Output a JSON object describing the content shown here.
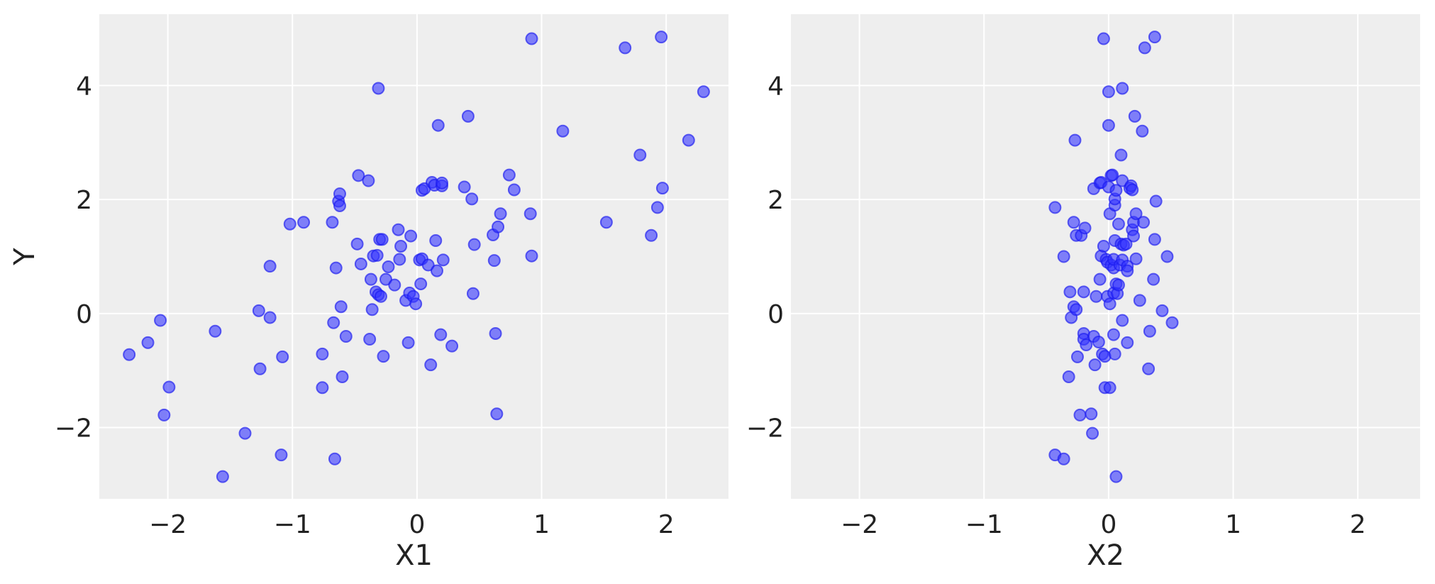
{
  "chart_data": [
    {
      "type": "scatter",
      "xlabel": "X1",
      "ylabel": "Y",
      "xlim": [
        -2.55,
        2.5
      ],
      "ylim": [
        -3.25,
        5.25
      ],
      "xticks": [
        -2,
        -1,
        0,
        1,
        2
      ],
      "xtick_labels": [
        "−2",
        "−1",
        "0",
        "1",
        "2"
      ],
      "yticks": [
        -2,
        0,
        2,
        4
      ],
      "ytick_labels": [
        "−2",
        "0",
        "2",
        "4"
      ],
      "grid": true,
      "color": "#3333ff",
      "points": [
        [
          -2.31,
          -0.72
        ],
        [
          -2.16,
          -0.51
        ],
        [
          -2.06,
          -0.12
        ],
        [
          -2.03,
          -1.78
        ],
        [
          -1.99,
          -1.29
        ],
        [
          -1.62,
          -0.31
        ],
        [
          -1.56,
          -2.86
        ],
        [
          -1.38,
          -2.1
        ],
        [
          -1.27,
          0.05
        ],
        [
          -1.26,
          -0.97
        ],
        [
          -1.18,
          0.83
        ],
        [
          -1.18,
          -0.07
        ],
        [
          -1.09,
          -2.48
        ],
        [
          -1.08,
          -0.76
        ],
        [
          -1.02,
          1.57
        ],
        [
          -0.91,
          1.6
        ],
        [
          -0.76,
          -0.71
        ],
        [
          -0.76,
          -1.3
        ],
        [
          -0.68,
          1.6
        ],
        [
          -0.67,
          -0.16
        ],
        [
          -0.66,
          -2.55
        ],
        [
          -0.65,
          0.8
        ],
        [
          -0.63,
          1.97
        ],
        [
          -0.62,
          1.89
        ],
        [
          -0.62,
          2.1
        ],
        [
          -0.61,
          0.12
        ],
        [
          -0.6,
          -1.11
        ],
        [
          -0.57,
          -0.4
        ],
        [
          -0.48,
          1.22
        ],
        [
          -0.47,
          2.42
        ],
        [
          -0.45,
          0.87
        ],
        [
          -0.39,
          2.33
        ],
        [
          -0.38,
          -0.45
        ],
        [
          -0.37,
          0.6
        ],
        [
          -0.36,
          0.07
        ],
        [
          -0.35,
          1.01
        ],
        [
          -0.33,
          0.38
        ],
        [
          -0.32,
          1.02
        ],
        [
          -0.31,
          3.95
        ],
        [
          -0.31,
          0.33
        ],
        [
          -0.3,
          1.3
        ],
        [
          -0.29,
          0.3
        ],
        [
          -0.28,
          1.3
        ],
        [
          -0.27,
          -0.75
        ],
        [
          -0.25,
          0.6
        ],
        [
          -0.23,
          0.82
        ],
        [
          -0.18,
          0.5
        ],
        [
          -0.15,
          1.47
        ],
        [
          -0.14,
          0.95
        ],
        [
          -0.13,
          1.18
        ],
        [
          -0.09,
          0.23
        ],
        [
          -0.07,
          -0.51
        ],
        [
          -0.06,
          0.36
        ],
        [
          -0.05,
          1.36
        ],
        [
          -0.03,
          0.3
        ],
        [
          -0.01,
          0.17
        ],
        [
          0.02,
          0.94
        ],
        [
          0.03,
          0.52
        ],
        [
          0.04,
          2.16
        ],
        [
          0.04,
          0.96
        ],
        [
          0.06,
          2.19
        ],
        [
          0.09,
          0.85
        ],
        [
          0.11,
          -0.9
        ],
        [
          0.12,
          2.3
        ],
        [
          0.14,
          2.25
        ],
        [
          0.15,
          1.28
        ],
        [
          0.16,
          0.75
        ],
        [
          0.17,
          3.3
        ],
        [
          0.19,
          -0.37
        ],
        [
          0.2,
          2.24
        ],
        [
          0.2,
          2.29
        ],
        [
          0.21,
          0.94
        ],
        [
          0.28,
          -0.57
        ],
        [
          0.38,
          2.22
        ],
        [
          0.41,
          3.46
        ],
        [
          0.44,
          2.01
        ],
        [
          0.45,
          0.35
        ],
        [
          0.46,
          1.21
        ],
        [
          0.61,
          1.38
        ],
        [
          0.62,
          0.93
        ],
        [
          0.63,
          -0.35
        ],
        [
          0.64,
          -1.76
        ],
        [
          0.65,
          1.52
        ],
        [
          0.67,
          1.75
        ],
        [
          0.74,
          2.43
        ],
        [
          0.78,
          2.17
        ],
        [
          0.91,
          1.75
        ],
        [
          0.92,
          1.01
        ],
        [
          0.92,
          4.82
        ],
        [
          1.17,
          3.2
        ],
        [
          1.52,
          1.6
        ],
        [
          1.67,
          4.66
        ],
        [
          1.79,
          2.78
        ],
        [
          1.88,
          1.37
        ],
        [
          1.93,
          1.86
        ],
        [
          1.96,
          4.85
        ],
        [
          1.97,
          2.2
        ],
        [
          2.18,
          3.04
        ],
        [
          2.3,
          3.89
        ]
      ]
    },
    {
      "type": "scatter",
      "xlabel": "X2",
      "ylabel": "",
      "xlim": [
        -2.55,
        2.5
      ],
      "ylim": [
        -3.25,
        5.25
      ],
      "xticks": [
        -2,
        -1,
        0,
        1,
        2
      ],
      "xtick_labels": [
        "−2",
        "−1",
        "0",
        "1",
        "2"
      ],
      "yticks": [
        -2,
        0,
        2,
        4
      ],
      "ytick_labels": [
        "−2",
        "0",
        "2",
        "4"
      ],
      "grid": true,
      "color": "#3333ff",
      "points": [
        [
          -0.43,
          1.86
        ],
        [
          -0.43,
          -2.48
        ],
        [
          -0.36,
          -2.55
        ],
        [
          -0.36,
          1.0
        ],
        [
          -0.32,
          -1.11
        ],
        [
          -0.31,
          0.38
        ],
        [
          -0.3,
          -0.07
        ],
        [
          -0.28,
          1.6
        ],
        [
          -0.28,
          0.12
        ],
        [
          -0.27,
          3.04
        ],
        [
          -0.26,
          0.07
        ],
        [
          -0.26,
          1.37
        ],
        [
          -0.25,
          -0.76
        ],
        [
          -0.23,
          -1.78
        ],
        [
          -0.22,
          1.37
        ],
        [
          -0.2,
          -0.35
        ],
        [
          -0.2,
          0.38
        ],
        [
          -0.2,
          -0.45
        ],
        [
          -0.19,
          1.5
        ],
        [
          -0.18,
          -0.55
        ],
        [
          -0.14,
          -1.76
        ],
        [
          -0.13,
          -2.1
        ],
        [
          -0.12,
          2.19
        ],
        [
          -0.12,
          -0.4
        ],
        [
          -0.11,
          -0.9
        ],
        [
          -0.1,
          0.3
        ],
        [
          -0.08,
          -0.5
        ],
        [
          -0.07,
          0.6
        ],
        [
          -0.07,
          2.29
        ],
        [
          -0.06,
          2.3
        ],
        [
          -0.06,
          1.01
        ],
        [
          -0.05,
          -0.71
        ],
        [
          -0.04,
          4.82
        ],
        [
          -0.04,
          1.18
        ],
        [
          -0.03,
          -1.3
        ],
        [
          -0.03,
          -0.75
        ],
        [
          -0.02,
          0.95
        ],
        [
          -0.01,
          0.9
        ],
        [
          -0.01,
          0.3
        ],
        [
          0.0,
          2.22
        ],
        [
          0.0,
          3.89
        ],
        [
          0.0,
          3.3
        ],
        [
          0.01,
          -1.3
        ],
        [
          0.01,
          0.17
        ],
        [
          0.01,
          1.75
        ],
        [
          0.02,
          0.85
        ],
        [
          0.02,
          2.42
        ],
        [
          0.03,
          2.43
        ],
        [
          0.04,
          0.8
        ],
        [
          0.04,
          -0.37
        ],
        [
          0.04,
          0.36
        ],
        [
          0.04,
          0.95
        ],
        [
          0.05,
          1.28
        ],
        [
          0.05,
          1.9
        ],
        [
          0.05,
          2.01
        ],
        [
          0.05,
          -0.71
        ],
        [
          0.06,
          0.52
        ],
        [
          0.06,
          2.16
        ],
        [
          0.06,
          -2.86
        ],
        [
          0.07,
          0.35
        ],
        [
          0.08,
          0.5
        ],
        [
          0.08,
          1.57
        ],
        [
          0.09,
          0.85
        ],
        [
          0.1,
          1.22
        ],
        [
          0.1,
          2.78
        ],
        [
          0.11,
          3.95
        ],
        [
          0.11,
          2.33
        ],
        [
          0.11,
          0.94
        ],
        [
          0.11,
          -0.12
        ],
        [
          0.12,
          1.2
        ],
        [
          0.14,
          1.22
        ],
        [
          0.15,
          0.83
        ],
        [
          0.15,
          0.75
        ],
        [
          0.15,
          -0.51
        ],
        [
          0.17,
          2.2
        ],
        [
          0.18,
          2.24
        ],
        [
          0.19,
          1.47
        ],
        [
          0.19,
          2.17
        ],
        [
          0.2,
          1.36
        ],
        [
          0.2,
          1.6
        ],
        [
          0.21,
          3.46
        ],
        [
          0.22,
          1.75
        ],
        [
          0.22,
          0.96
        ],
        [
          0.25,
          0.23
        ],
        [
          0.27,
          3.2
        ],
        [
          0.28,
          1.6
        ],
        [
          0.29,
          4.66
        ],
        [
          0.32,
          -0.97
        ],
        [
          0.33,
          -0.31
        ],
        [
          0.36,
          0.6
        ],
        [
          0.37,
          1.3
        ],
        [
          0.37,
          4.85
        ],
        [
          0.38,
          1.97
        ],
        [
          0.43,
          0.05
        ],
        [
          0.47,
          1.0
        ],
        [
          0.51,
          -0.16
        ]
      ]
    }
  ]
}
